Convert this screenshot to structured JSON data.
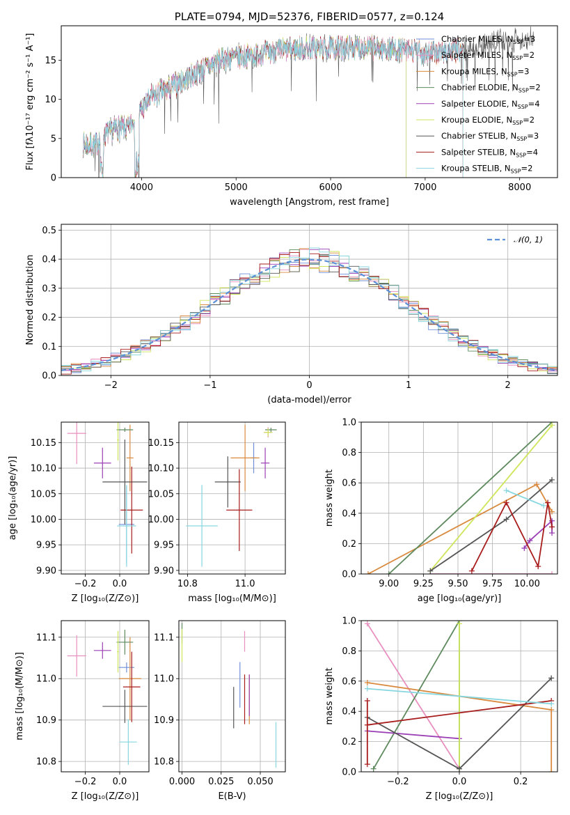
{
  "colors": [
    "#6f8fd9",
    "#e88fbf",
    "#d98a3e",
    "#5e8a5e",
    "#9b3fb5",
    "#cde65a",
    "#555555",
    "#a81c1c",
    "#86d6e0"
  ],
  "chart_data": [
    {
      "id": "spectrum",
      "type": "line",
      "title": "PLATE=0794, MJD=52376, FIBERID=0577, z=0.124",
      "xlabel": "wavelength [Angstrom, rest frame]",
      "ylabel": "Flux [fλ10⁻¹⁷ erg cm⁻² s⁻¹ A⁻¹]",
      "xlim": [
        3150,
        8400
      ],
      "ylim": [
        0,
        19.4
      ],
      "xticks": [
        {
          "v": 4000,
          "t": "4000"
        },
        {
          "v": 5000,
          "t": "5000"
        },
        {
          "v": 6000,
          "t": "6000"
        },
        {
          "v": 7000,
          "t": "7000"
        },
        {
          "v": 8000,
          "t": "8000"
        }
      ],
      "yticks": [
        {
          "v": 0,
          "t": "0"
        },
        {
          "v": 5,
          "t": "5"
        },
        {
          "v": 10,
          "t": "10"
        },
        {
          "v": 15,
          "t": "15"
        }
      ],
      "grid": false,
      "legend": "upper-right",
      "continuum": [
        [
          3380,
          4.3
        ],
        [
          3500,
          4.0
        ],
        [
          3560,
          5.0
        ],
        [
          3650,
          5.8
        ],
        [
          3750,
          6.4
        ],
        [
          3850,
          6.2
        ],
        [
          3930,
          7.4
        ],
        [
          4000,
          8.6
        ],
        [
          4100,
          10.2
        ],
        [
          4300,
          11.5
        ],
        [
          4500,
          12.8
        ],
        [
          4700,
          14.2
        ],
        [
          4900,
          15.3
        ],
        [
          5100,
          15.5
        ],
        [
          5300,
          15.9
        ],
        [
          5500,
          16.3
        ],
        [
          5800,
          16.6
        ],
        [
          6000,
          16.5
        ],
        [
          6300,
          16.7
        ],
        [
          6600,
          16.4
        ],
        [
          6900,
          16.1
        ],
        [
          7100,
          15.9
        ],
        [
          7300,
          16.3
        ],
        [
          7400,
          16.1
        ],
        [
          7600,
          17.0
        ],
        [
          7900,
          17.6
        ],
        [
          8150,
          17.9
        ]
      ],
      "series": [
        {
          "name": "Chabrier MILES, N<sub>SSP</sub>=3",
          "xmax": 7400
        },
        {
          "name": "Salpeter MILES, N<sub>SSP</sub>=2",
          "xmax": 7400
        },
        {
          "name": "Kroupa MILES, N<sub>SSP</sub>=3",
          "xmax": 7400
        },
        {
          "name": "Chabrier ELODIE, N<sub>SSP</sub>=2",
          "xmax": 6800
        },
        {
          "name": "Salpeter ELODIE, N<sub>SSP</sub>=4",
          "xmax": 6800
        },
        {
          "name": "Kroupa ELODIE, N<sub>SSP</sub>=2",
          "xmax": 6800
        },
        {
          "name": "Chabrier STELIB, N<sub>SSP</sub>=3",
          "xmax": 8150
        },
        {
          "name": "Salpeter STELIB, N<sub>SSP</sub>=4",
          "xmax": 7400
        },
        {
          "name": "Kroupa STELIB, N<sub>SSP</sub>=2",
          "xmax": 7400
        }
      ]
    },
    {
      "id": "residuals",
      "type": "line",
      "xlabel": "(data-model)/error",
      "ylabel": "Normed distribution",
      "xlim": [
        -2.5,
        2.5
      ],
      "ylim": [
        0,
        0.52
      ],
      "xticks": [
        {
          "v": -2,
          "t": "−2"
        },
        {
          "v": -1,
          "t": "−1"
        },
        {
          "v": 0,
          "t": "0"
        },
        {
          "v": 1,
          "t": "1"
        },
        {
          "v": 2,
          "t": "2"
        }
      ],
      "yticks": [
        {
          "v": 0,
          "t": "0.0"
        },
        {
          "v": 0.1,
          "t": "0.1"
        },
        {
          "v": 0.2,
          "t": "0.2"
        },
        {
          "v": 0.3,
          "t": "0.3"
        },
        {
          "v": 0.4,
          "t": "0.4"
        },
        {
          "v": 0.5,
          "t": "0.5"
        }
      ],
      "grid": true,
      "legend": "upper-right",
      "reference_curve": {
        "name": "𝒩(0, 1)",
        "color": "#5b8fd6",
        "style": "dashed"
      },
      "bin_width": 0.1
    },
    {
      "id": "age-vs-Z",
      "type": "scatter",
      "xlabel": "Z [log₁₀(Z/Z⊙)]",
      "ylabel": "age  [log₁₀(age/yr)]",
      "xlim": [
        -0.34,
        0.17
      ],
      "ylim": [
        9.893,
        10.19
      ],
      "xticks": [
        {
          "v": -0.2,
          "t": "−0.2"
        },
        {
          "v": 0,
          "t": "0.0"
        }
      ],
      "yticks": [
        {
          "v": 9.9,
          "t": "9.90"
        },
        {
          "v": 9.95,
          "t": "9.95"
        },
        {
          "v": 10,
          "t": "10.00"
        },
        {
          "v": 10.05,
          "t": "10.05"
        },
        {
          "v": 10.1,
          "t": "10.10"
        },
        {
          "v": 10.15,
          "t": "10.15"
        }
      ],
      "grid": true,
      "points": [
        {
          "s": 0,
          "x": 0.04,
          "dx": 0.045,
          "y": 9.99,
          "dy": 0.075
        },
        {
          "s": 1,
          "x": -0.25,
          "dx": 0.055,
          "y": 10.168,
          "dy": 0.06
        },
        {
          "s": 2,
          "x": 0.06,
          "dx": 0.02,
          "y": 10.12,
          "dy": 0.065
        },
        {
          "s": 3,
          "x": 0.03,
          "dx": 0.048,
          "y": 10.175,
          "dy": 0.004
        },
        {
          "s": 4,
          "x": -0.1,
          "dx": 0.05,
          "y": 10.11,
          "dy": 0.03
        },
        {
          "s": 5,
          "x": -0.01,
          "dx": 0.005,
          "y": 10.155,
          "dy": 0.04
        },
        {
          "s": 6,
          "x": 0.03,
          "dx": 0.13,
          "y": 10.073,
          "dy": 0.083
        },
        {
          "s": 7,
          "x": 0.07,
          "dx": 0.065,
          "y": 10.018,
          "dy": 0.085
        },
        {
          "s": 8,
          "x": 0.04,
          "dx": 0.055,
          "y": 9.987,
          "dy": 0.08
        }
      ]
    },
    {
      "id": "age-vs-mass",
      "type": "scatter",
      "xlabel": "mass [log₁₀(M/M⊙)]",
      "xlim": [
        10.77,
        11.14
      ],
      "ylim": [
        9.893,
        10.19
      ],
      "xticks": [
        {
          "v": 10.8,
          "t": "10.8"
        },
        {
          "v": 11,
          "t": "11.0"
        }
      ],
      "yticks": [
        {
          "v": 9.9,
          "t": "9.90"
        },
        {
          "v": 9.95,
          "t": "9.95"
        },
        {
          "v": 10,
          "t": "10.00"
        },
        {
          "v": 10.05,
          "t": "10.05"
        },
        {
          "v": 10.1,
          "t": "10.10"
        },
        {
          "v": 10.15,
          "t": "10.15"
        }
      ],
      "grid": true,
      "points": [
        {
          "s": 0,
          "x": 11.03,
          "dx": 0.01,
          "y": 10.12,
          "dy": 0.03
        },
        {
          "s": 1,
          "x": 11.08,
          "dx": 0.015,
          "y": 10.17,
          "dy": 0.01
        },
        {
          "s": 2,
          "x": 11.0,
          "dx": 0.05,
          "y": 10.12,
          "dy": 0.065
        },
        {
          "s": 3,
          "x": 11.09,
          "dx": 0.02,
          "y": 10.175,
          "dy": 0.004
        },
        {
          "s": 4,
          "x": 11.07,
          "dx": 0.015,
          "y": 10.11,
          "dy": 0.03
        },
        {
          "s": 5,
          "x": 11.08,
          "dx": 0.015,
          "y": 10.17,
          "dy": 0.008
        },
        {
          "s": 6,
          "x": 10.94,
          "dx": 0.045,
          "y": 10.073,
          "dy": 0.05
        },
        {
          "s": 7,
          "x": 10.98,
          "dx": 0.045,
          "y": 10.018,
          "dy": 0.08
        },
        {
          "s": 8,
          "x": 10.85,
          "dx": 0.055,
          "y": 9.987,
          "dy": 0.08
        }
      ]
    },
    {
      "id": "weight-vs-age",
      "type": "line",
      "xlabel": "age  [log₁₀(age/yr)]",
      "ylabel": "mass weight",
      "xlim": [
        8.8,
        10.22
      ],
      "ylim": [
        0,
        1
      ],
      "xticks": [
        {
          "v": 9,
          "t": "9.00"
        },
        {
          "v": 9.25,
          "t": "9.25"
        },
        {
          "v": 9.5,
          "t": "9.50"
        },
        {
          "v": 9.75,
          "t": "9.75"
        },
        {
          "v": 10,
          "t": "10.00"
        }
      ],
      "yticks": [
        {
          "v": 0,
          "t": "0.0"
        },
        {
          "v": 0.2,
          "t": "0.2"
        },
        {
          "v": 0.4,
          "t": "0.4"
        },
        {
          "v": 0.6,
          "t": "0.6"
        },
        {
          "v": 0.8,
          "t": "0.8"
        },
        {
          "v": 1,
          "t": "1.0"
        }
      ],
      "grid": true,
      "series": [
        {
          "s": 1,
          "x": [
            9.3,
            10.18
          ],
          "y": [
            0.0,
            0.0
          ]
        },
        {
          "s": 2,
          "x": [
            8.85,
            10.07,
            10.18
          ],
          "y": [
            0.0,
            0.59,
            0.41
          ]
        },
        {
          "s": 3,
          "x": [
            9.0,
            10.18
          ],
          "y": [
            0.0,
            1.0
          ]
        },
        {
          "s": 4,
          "x": [
            9.98,
            10.02,
            10.18,
            10.18
          ],
          "y": [
            0.17,
            0.22,
            0.35,
            0.27
          ]
        },
        {
          "s": 5,
          "x": [
            9.3,
            10.18
          ],
          "y": [
            0.02,
            0.98
          ]
        },
        {
          "s": 6,
          "x": [
            9.3,
            9.85,
            10.18
          ],
          "y": [
            0.02,
            0.36,
            0.62
          ]
        },
        {
          "s": 7,
          "x": [
            9.6,
            9.85,
            10.08,
            10.15,
            10.18
          ],
          "y": [
            0.02,
            0.47,
            0.05,
            0.47,
            0.31
          ]
        },
        {
          "s": 8,
          "x": [
            9.85,
            10.12
          ],
          "y": [
            0.55,
            0.45
          ]
        }
      ]
    },
    {
      "id": "mass-vs-Z",
      "type": "scatter",
      "xlabel": "Z [log₁₀(Z/Z⊙)]",
      "ylabel": "mass [log₁₀(M/M⊙)]",
      "xlim": [
        -0.34,
        0.17
      ],
      "ylim": [
        10.775,
        11.14
      ],
      "xticks": [
        {
          "v": -0.2,
          "t": "−0.2"
        },
        {
          "v": 0,
          "t": "0.0"
        }
      ],
      "yticks": [
        {
          "v": 10.8,
          "t": "10.8"
        },
        {
          "v": 10.9,
          "t": "10.9"
        },
        {
          "v": 11,
          "t": "11.0"
        },
        {
          "v": 11.1,
          "t": "11.1"
        }
      ],
      "grid": true,
      "points": [
        {
          "s": 0,
          "x": 0.04,
          "dx": 0.045,
          "y": 11.027,
          "dy": 0.012
        },
        {
          "s": 1,
          "x": -0.25,
          "dx": 0.055,
          "y": 11.055,
          "dy": 0.05
        },
        {
          "s": 2,
          "x": 0.06,
          "dx": 0.065,
          "y": 11.0,
          "dy": 0.1
        },
        {
          "s": 3,
          "x": 0.03,
          "dx": 0.048,
          "y": 11.088,
          "dy": 0.03
        },
        {
          "s": 4,
          "x": -0.1,
          "dx": 0.05,
          "y": 11.068,
          "dy": 0.02
        },
        {
          "s": 5,
          "x": -0.01,
          "dx": 0.005,
          "y": 11.065,
          "dy": 0.05
        },
        {
          "s": 6,
          "x": 0.03,
          "dx": 0.13,
          "y": 10.933,
          "dy": 0.04
        },
        {
          "s": 7,
          "x": 0.07,
          "dx": 0.05,
          "y": 10.98,
          "dy": 0.085
        },
        {
          "s": 8,
          "x": 0.05,
          "dx": 0.05,
          "y": 10.847,
          "dy": 0.055
        }
      ]
    },
    {
      "id": "mass-vs-EBV",
      "type": "scatter",
      "xlabel": "E(B-V)",
      "xlim": [
        -0.002,
        0.066
      ],
      "ylim": [
        10.775,
        11.14
      ],
      "xticks": [
        {
          "v": 0,
          "t": "0.000"
        },
        {
          "v": 0.025,
          "t": "0.025"
        },
        {
          "v": 0.05,
          "t": "0.050"
        }
      ],
      "yticks": [
        {
          "v": 10.8,
          "t": "10.8"
        },
        {
          "v": 10.9,
          "t": "10.9"
        },
        {
          "v": 11,
          "t": "11.0"
        },
        {
          "v": 11.1,
          "t": "11.1"
        }
      ],
      "grid": true,
      "points": [
        {
          "s": 0,
          "x": 0.037,
          "dx": 0,
          "y": 10.985,
          "dy": 0.055
        },
        {
          "s": 1,
          "x": 0.04,
          "dx": 0,
          "y": 11.09,
          "dy": 0.025
        },
        {
          "s": 2,
          "x": 0.043,
          "dx": 0,
          "y": 10.95,
          "dy": 0.06
        },
        {
          "s": 3,
          "x": 0.0,
          "dx": 0,
          "y": 11.11,
          "dy": 0.025
        },
        {
          "s": 4,
          "x": 0.043,
          "dx": 0,
          "y": 10.96,
          "dy": 0.05
        },
        {
          "s": 5,
          "x": 0.0,
          "dx": 0,
          "y": 11.08,
          "dy": 0.04
        },
        {
          "s": 6,
          "x": 0.033,
          "dx": 0,
          "y": 10.93,
          "dy": 0.05
        },
        {
          "s": 7,
          "x": 0.04,
          "dx": 0,
          "y": 10.95,
          "dy": 0.06
        },
        {
          "s": 8,
          "x": 0.06,
          "dx": 0,
          "y": 10.84,
          "dy": 0.055
        }
      ]
    },
    {
      "id": "weight-vs-Z",
      "type": "line",
      "xlabel": "Z [log₁₀(Z/Z⊙)]",
      "ylabel": "mass weight",
      "xlim": [
        -0.32,
        0.32
      ],
      "ylim": [
        0,
        1
      ],
      "xticks": [
        {
          "v": -0.2,
          "t": "−0.2"
        },
        {
          "v": 0,
          "t": "0.0"
        },
        {
          "v": 0.2,
          "t": "0.2"
        }
      ],
      "yticks": [
        {
          "v": 0,
          "t": "0.0"
        },
        {
          "v": 0.2,
          "t": "0.2"
        },
        {
          "v": 0.4,
          "t": "0.4"
        },
        {
          "v": 0.6,
          "t": "0.6"
        },
        {
          "v": 0.8,
          "t": "0.8"
        },
        {
          "v": 1,
          "t": "1.0"
        }
      ],
      "grid": true,
      "series": [
        {
          "s": 1,
          "x": [
            -0.3,
            0.0
          ],
          "y": [
            0.98,
            0.02
          ]
        },
        {
          "s": 2,
          "x": [
            -0.3,
            0.3,
            0.3
          ],
          "y": [
            0.59,
            0.41,
            0.0
          ]
        },
        {
          "s": 3,
          "x": [
            -0.28,
            0.0,
            0.0
          ],
          "y": [
            0.02,
            1.0,
            0.02
          ]
        },
        {
          "s": 4,
          "x": [
            -0.3,
            0.0
          ],
          "y": [
            0.27,
            0.22
          ]
        },
        {
          "s": 5,
          "x": [
            0.0,
            0.0
          ],
          "y": [
            0.02,
            0.98
          ]
        },
        {
          "s": 6,
          "x": [
            -0.3,
            0.0,
            0.3
          ],
          "y": [
            0.36,
            0.02,
            0.62
          ]
        },
        {
          "s": 7,
          "x": [
            -0.3,
            -0.3,
            -0.3,
            0.3
          ],
          "y": [
            0.47,
            0.05,
            0.31,
            0.47
          ]
        },
        {
          "s": 8,
          "x": [
            -0.3,
            0.3
          ],
          "y": [
            0.55,
            0.45
          ]
        }
      ]
    }
  ]
}
